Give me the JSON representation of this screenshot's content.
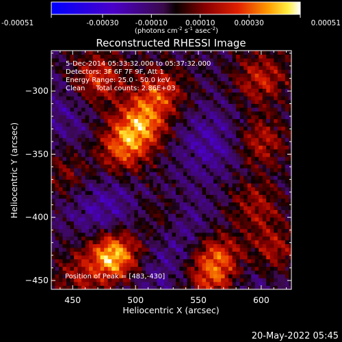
{
  "chart_data": {
    "type": "heatmap",
    "title": "Reconstructed RHESSI Image",
    "xlabel": "Heliocentric X (arcsec)",
    "ylabel": "Heliocentric Y (arcsec)",
    "xlim": [
      433,
      624
    ],
    "ylim": [
      -457,
      -268
    ],
    "x_ticks": [
      450,
      500,
      550,
      600
    ],
    "y_ticks": [
      -300,
      -350,
      -400,
      -450
    ],
    "x_tick_labels": [
      "450",
      "500",
      "550",
      "600"
    ],
    "y_tick_labels": [
      "−300",
      "−350",
      "−400",
      "−450"
    ],
    "colorbar": {
      "min": -0.00051,
      "max": 0.00051,
      "tick_values": [
        -0.00051,
        -0.0003,
        -0.0001,
        0.0001,
        0.0003,
        0.00051
      ],
      "tick_labels": [
        "-0.00051",
        "-0.00030",
        "-0.00010",
        "0.00010",
        "0.00030",
        "0.00051"
      ],
      "unit_parts": [
        "(photons cm",
        "-2",
        " s",
        "-1",
        " asec",
        "-2",
        ")"
      ]
    },
    "annotations": [
      "5-Dec-2014 05:33:32.000 to 05:37:32.000",
      "Detectors: 3F 6F 7F 9F, Att 1",
      "Energy Range: 25.0 - 50.0 keV",
      "Clean     Total counts: 2.86E+03"
    ],
    "peak_label": "Position of Peak = [483,-430]",
    "peak_position": [
      483,
      -430
    ],
    "grid": false,
    "colormap": "rainbow-blue-purple-black-red-orange-yellow-white",
    "hot_spots": [
      {
        "x": 483,
        "y": -430,
        "value": 0.00051
      },
      {
        "x": 505,
        "y": -325,
        "value": 0.00036
      },
      {
        "x": 490,
        "y": -345,
        "value": 0.00032
      },
      {
        "x": 470,
        "y": -290,
        "value": 0.00028
      },
      {
        "x": 520,
        "y": -300,
        "value": 0.00026
      },
      {
        "x": 600,
        "y": -290,
        "value": 0.00024
      },
      {
        "x": 600,
        "y": -340,
        "value": 0.00022
      },
      {
        "x": 565,
        "y": -430,
        "value": 0.0003
      },
      {
        "x": 560,
        "y": -450,
        "value": 0.00026
      },
      {
        "x": 610,
        "y": -425,
        "value": 0.0002
      },
      {
        "x": 595,
        "y": -390,
        "value": 0.00018
      },
      {
        "x": 445,
        "y": -365,
        "value": 0.00014
      },
      {
        "x": 520,
        "y": -400,
        "value": 0.00012
      },
      {
        "x": 455,
        "y": -445,
        "value": 0.00016
      }
    ],
    "cold_spots": [
      {
        "x": 560,
        "y": -340,
        "value": -0.00014
      },
      {
        "x": 475,
        "y": -395,
        "value": -0.00016
      },
      {
        "x": 540,
        "y": -410,
        "value": -0.00012
      },
      {
        "x": 440,
        "y": -320,
        "value": -0.0001
      },
      {
        "x": 585,
        "y": -450,
        "value": -8e-05
      },
      {
        "x": 515,
        "y": -450,
        "value": -9e-05
      }
    ]
  },
  "footer": {
    "date": "20-May-2022 05:45"
  }
}
